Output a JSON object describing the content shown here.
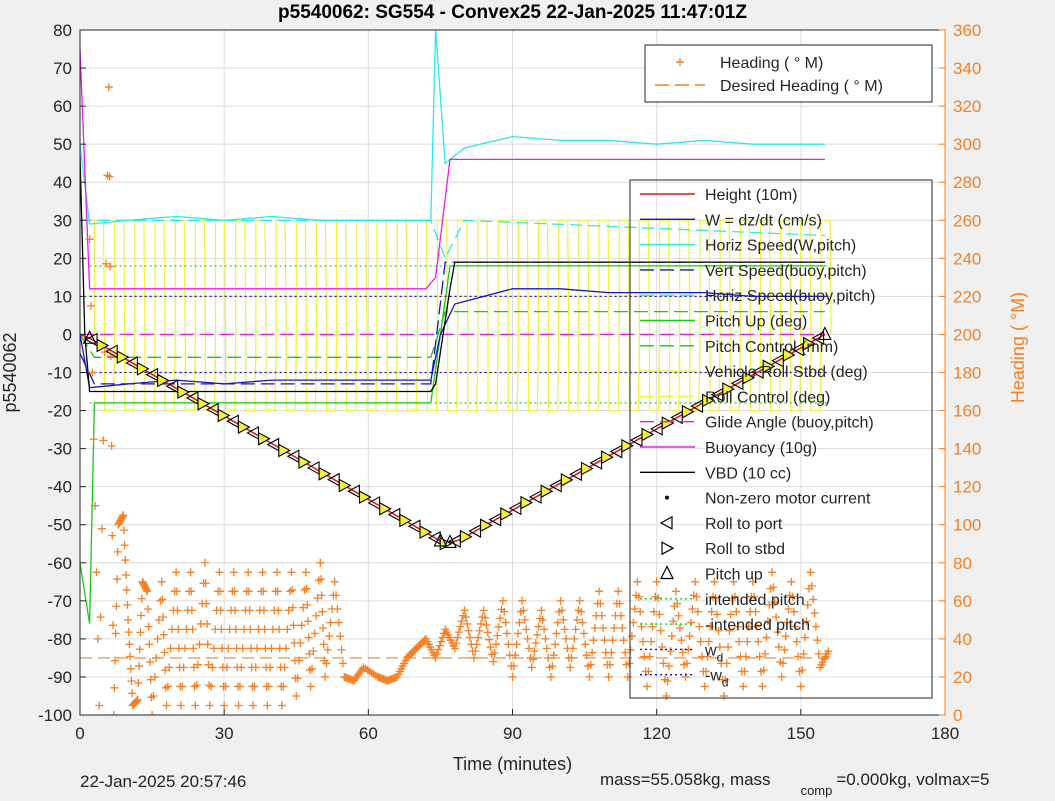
{
  "chart_data": {
    "type": "line",
    "title": "p5540062: SG554 - Convex25 22-Jan-2025 11:47:01Z",
    "xlabel": "Time (minutes)",
    "ylabel": "p5540062",
    "y2label": "Heading (  °M)",
    "xlim": [
      0,
      180
    ],
    "ylim": [
      -100,
      80
    ],
    "y2lim": [
      0,
      360
    ],
    "xticks": [
      0,
      30,
      60,
      90,
      120,
      150,
      180
    ],
    "yticks": [
      80,
      70,
      60,
      50,
      40,
      30,
      20,
      10,
      0,
      -10,
      -20,
      -30,
      -40,
      -50,
      -60,
      -70,
      -80,
      -90,
      -100
    ],
    "y2ticks": [
      360,
      340,
      320,
      300,
      280,
      260,
      240,
      220,
      200,
      180,
      160,
      140,
      120,
      100,
      80,
      60,
      40,
      20,
      0
    ],
    "grid": true,
    "heading_legend": [
      {
        "name": "Heading (  ° M)",
        "color": "#f58025",
        "style": "plus"
      },
      {
        "name": "Desired Heading (    ° M)",
        "color": "#f58025",
        "style": "dash"
      }
    ],
    "legend": [
      {
        "name": "Height (10m)",
        "color": "#e01b1b",
        "style": "solid"
      },
      {
        "name": "W = dz/dt (cm/s)",
        "color": "#1414c8",
        "style": "solid"
      },
      {
        "name": "Horiz Speed(W,pitch)",
        "color": "#2ee8e8",
        "style": "solid"
      },
      {
        "name": "Vert Speed(buoy,pitch)",
        "color": "#1414c8",
        "style": "dash"
      },
      {
        "name": "Horiz Speed(buoy,pitch)",
        "color": "#2ee8e8",
        "style": "dash"
      },
      {
        "name": "Pitch Up (deg)",
        "color": "#18c818",
        "style": "solid"
      },
      {
        "name": "Pitch Control (mm)",
        "color": "#18c818",
        "style": "dash"
      },
      {
        "name": "Vehicle Roll Stbd (deg)",
        "color": "#f2f23a",
        "style": "solid"
      },
      {
        "name": "Roll Control (deg)",
        "color": "#f2f23a",
        "style": "dash"
      },
      {
        "name": "Glide Angle (buoy,pitch)",
        "color": "#e81ee8",
        "style": "dash"
      },
      {
        "name": "Buoyancy (10g)",
        "color": "#e81ee8",
        "style": "solid"
      },
      {
        "name": "VBD (10 cc)",
        "color": "#000000",
        "style": "solid"
      },
      {
        "name": "Non-zero motor current",
        "color": "#000000",
        "style": "dot"
      },
      {
        "name": "Roll to port",
        "color": "#000000",
        "style": "tri-left"
      },
      {
        "name": "Roll to stbd",
        "color": "#000000",
        "style": "tri-right"
      },
      {
        "name": "Pitch up",
        "color": "#000000",
        "style": "tri-up"
      },
      {
        "name": "intended pitch",
        "color": "#18c818",
        "style": "dotted"
      },
      {
        "name": "-intended pitch",
        "color": "#18c818",
        "style": "dotted"
      },
      {
        "name": "w_d",
        "color": "#1414c8",
        "style": "dotted"
      },
      {
        "name": "-w_d",
        "color": "#1414c8",
        "style": "dotted"
      }
    ],
    "series": {
      "height": {
        "x": [
          0,
          2,
          76,
          79,
          155
        ],
        "y": [
          0,
          -1,
          -55,
          -54,
          0
        ]
      },
      "vbd": {
        "x": [
          0,
          1,
          2,
          73,
          74,
          77,
          78,
          155
        ],
        "y": [
          47,
          0,
          -15,
          -15,
          -13,
          12,
          19,
          19
        ]
      },
      "buoyancy": {
        "x": [
          0,
          2,
          72,
          74,
          77,
          155
        ],
        "y": [
          75,
          12,
          12,
          15,
          46,
          46
        ]
      },
      "w": {
        "x": [
          0,
          2,
          10,
          20,
          30,
          40,
          50,
          60,
          73,
          75,
          78,
          90,
          100,
          110,
          120,
          130,
          140,
          155
        ],
        "y": [
          0,
          -14,
          -13,
          -12,
          -13,
          -12,
          -12,
          -12,
          -12,
          0,
          8,
          12,
          12,
          11,
          11,
          11,
          10,
          10
        ]
      },
      "horiz_speed": {
        "x": [
          0,
          2,
          10,
          20,
          30,
          40,
          50,
          60,
          73,
          74,
          76,
          80,
          90,
          100,
          110,
          120,
          130,
          140,
          155
        ],
        "y": [
          50,
          29,
          30,
          31,
          30,
          31,
          30,
          30,
          30,
          80,
          45,
          49,
          52,
          51,
          51,
          50,
          51,
          50,
          50
        ]
      },
      "horiz_speed_buoy": {
        "x": [
          0,
          2,
          73,
          76,
          80,
          155
        ],
        "y": [
          30,
          30,
          30,
          20,
          30,
          26
        ]
      },
      "pitch_up": {
        "x": [
          0,
          2,
          3,
          73,
          75,
          77,
          80,
          155
        ],
        "y": [
          -60,
          -76,
          -18,
          -18,
          0,
          18,
          18,
          18
        ]
      },
      "pitch_control": {
        "x": [
          0,
          3,
          73,
          76,
          155
        ],
        "y": [
          0,
          -6,
          -6,
          6,
          6
        ]
      },
      "glide_angle": {
        "x": [
          0,
          3,
          73,
          76,
          155
        ],
        "y": [
          0,
          0,
          0,
          0,
          0
        ]
      },
      "vert_speed_buoy": {
        "x": [
          0,
          3,
          73,
          76,
          155
        ],
        "y": [
          -5,
          -13,
          -13,
          19,
          19
        ]
      },
      "intended_pitch": 18,
      "neg_intended_pitch": -18,
      "w_d": 10,
      "neg_w_d": -10,
      "desired_heading_deg": 30,
      "heading": {
        "x": [
          2,
          4,
          6,
          7,
          8,
          9,
          10,
          11,
          12,
          13,
          14,
          15,
          17,
          18,
          20,
          21,
          23,
          24,
          26,
          27,
          29,
          30,
          32,
          33,
          35,
          36,
          38,
          39,
          41,
          42,
          44,
          45,
          47,
          48,
          50,
          51,
          53,
          55,
          57,
          59,
          62,
          64,
          66,
          68,
          70,
          72,
          74,
          76,
          78,
          80,
          82,
          84,
          86,
          88,
          90,
          92,
          94,
          96,
          98,
          100,
          102,
          104,
          106,
          108,
          110,
          112,
          114,
          116,
          118,
          120,
          122,
          124,
          126,
          128,
          130,
          132,
          134,
          136,
          138,
          140,
          142,
          144,
          146,
          148,
          150,
          152,
          154,
          156
        ],
        "y": [
          250,
          5,
          330,
          0,
          100,
          105,
          50,
          5,
          8,
          70,
          65,
          0,
          70,
          5,
          75,
          5,
          75,
          5,
          80,
          5,
          75,
          5,
          75,
          5,
          75,
          5,
          75,
          5,
          75,
          5,
          75,
          10,
          75,
          15,
          80,
          20,
          70,
          20,
          18,
          25,
          20,
          18,
          20,
          30,
          35,
          40,
          30,
          45,
          35,
          55,
          30,
          55,
          28,
          60,
          20,
          60,
          25,
          55,
          20,
          60,
          25,
          60,
          20,
          65,
          20,
          65,
          20,
          70,
          15,
          70,
          10,
          65,
          20,
          70,
          15,
          70,
          10,
          70,
          15,
          70,
          15,
          75,
          20,
          70,
          15,
          75,
          25,
          35
        ]
      },
      "roll_period_min": 4.2
    }
  },
  "footer": {
    "timestamp": "22-Jan-2025 20:57:46",
    "mass_text": "mass=55.058kg, mass",
    "comp_sub": "comp",
    "volmax_text": "=0.000kg, volmax=5"
  }
}
